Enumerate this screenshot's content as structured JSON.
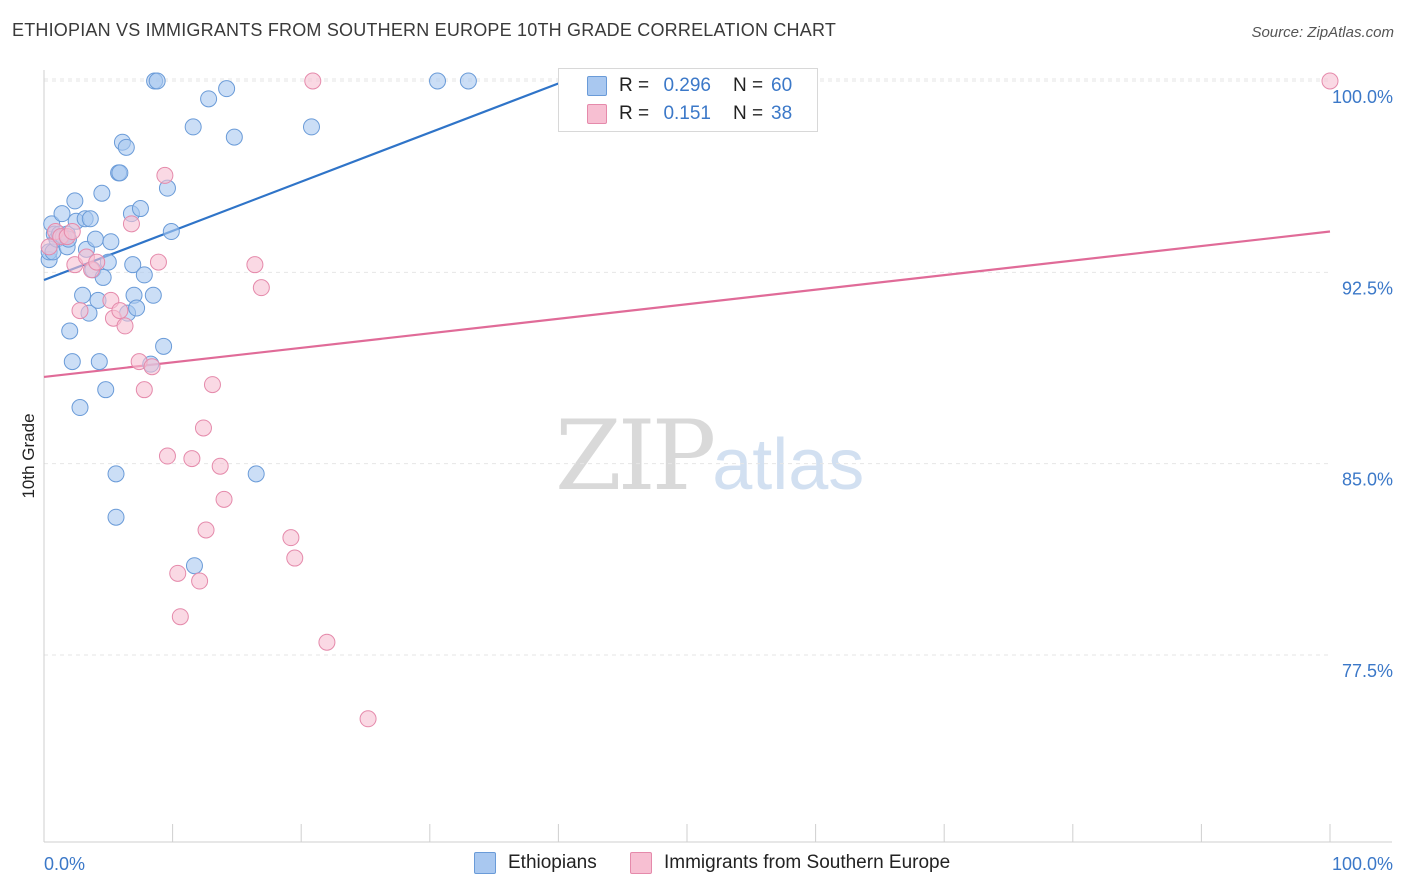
{
  "header": {
    "title": "ETHIOPIAN VS IMMIGRANTS FROM SOUTHERN EUROPE 10TH GRADE CORRELATION CHART",
    "source": "Source: ZipAtlas.com"
  },
  "watermark": {
    "zip": "ZIP",
    "atlas": "atlas"
  },
  "legend": {
    "rows": [
      {
        "r_label": "R =",
        "r_value": "0.296",
        "n_label": "N =",
        "n_value": "60",
        "color": "#a9c8f0",
        "border": "#6a9bd8"
      },
      {
        "r_label": "R =",
        "r_value": "0.151",
        "n_label": "N =",
        "n_value": "38",
        "color": "#f7bfd2",
        "border": "#e58aab"
      }
    ]
  },
  "bottom_legend": {
    "items": [
      {
        "label": "Ethiopians",
        "color": "#a9c8f0",
        "border": "#6a9bd8"
      },
      {
        "label": "Immigrants from Southern Europe",
        "color": "#f7bfd2",
        "border": "#e58aab"
      }
    ]
  },
  "colors": {
    "blue_fill": "#a9c8f0",
    "blue_stroke": "#6a9bd8",
    "blue_line": "#2f74c8",
    "pink_fill": "#f7bfd2",
    "pink_stroke": "#e58aab",
    "pink_line": "#e06b98",
    "grid": "#e6e6e6",
    "axis_text": "#3b78c8"
  },
  "chart_data": {
    "type": "scatter",
    "title": "ETHIOPIAN VS IMMIGRANTS FROM SOUTHERN EUROPE 10TH GRADE CORRELATION CHART",
    "xlabel": "",
    "ylabel": "10th Grade",
    "xlim": [
      0,
      100
    ],
    "ylim": [
      70.0,
      100.8
    ],
    "x_tick_labels": [
      "0.0%",
      "100.0%"
    ],
    "y_ticks": [
      100.0,
      92.5,
      85.0,
      77.5
    ],
    "y_tick_labels": [
      "100.0%",
      "92.5%",
      "85.0%",
      "77.5%"
    ],
    "grid": true,
    "series": [
      {
        "name": "Ethiopians",
        "color": "#a9c8f0",
        "trend": {
          "x": [
            0,
            40.5
          ],
          "y": [
            92.2,
            100.0
          ]
        },
        "points": [
          [
            0.4,
            93.0
          ],
          [
            0.4,
            93.3
          ],
          [
            0.6,
            94.4
          ],
          [
            0.7,
            93.3
          ],
          [
            0.8,
            94.0
          ],
          [
            1.0,
            93.8
          ],
          [
            1.2,
            94.0
          ],
          [
            1.4,
            94.8
          ],
          [
            1.5,
            93.9
          ],
          [
            1.8,
            94.0
          ],
          [
            1.8,
            93.5
          ],
          [
            1.9,
            93.8
          ],
          [
            2.0,
            90.2
          ],
          [
            2.2,
            89.0
          ],
          [
            2.4,
            95.3
          ],
          [
            2.5,
            94.5
          ],
          [
            2.8,
            87.2
          ],
          [
            3.0,
            91.6
          ],
          [
            3.2,
            94.6
          ],
          [
            3.3,
            93.4
          ],
          [
            3.5,
            90.9
          ],
          [
            3.6,
            94.6
          ],
          [
            3.8,
            92.6
          ],
          [
            4.0,
            93.8
          ],
          [
            4.2,
            91.4
          ],
          [
            4.3,
            89.0
          ],
          [
            4.5,
            95.6
          ],
          [
            4.6,
            92.3
          ],
          [
            4.8,
            87.9
          ],
          [
            5.0,
            92.9
          ],
          [
            5.2,
            93.7
          ],
          [
            5.6,
            82.9
          ],
          [
            5.6,
            84.6
          ],
          [
            5.8,
            96.4
          ],
          [
            5.9,
            96.4
          ],
          [
            6.1,
            97.6
          ],
          [
            6.4,
            97.4
          ],
          [
            6.5,
            90.9
          ],
          [
            6.8,
            94.8
          ],
          [
            6.9,
            92.8
          ],
          [
            7.0,
            91.6
          ],
          [
            7.2,
            91.1
          ],
          [
            7.5,
            95.0
          ],
          [
            7.8,
            92.4
          ],
          [
            8.3,
            88.9
          ],
          [
            8.5,
            91.6
          ],
          [
            8.6,
            100.0
          ],
          [
            8.8,
            100.0
          ],
          [
            9.3,
            89.6
          ],
          [
            9.6,
            95.8
          ],
          [
            9.9,
            94.1
          ],
          [
            11.7,
            81.0
          ],
          [
            11.6,
            98.2
          ],
          [
            12.8,
            99.3
          ],
          [
            14.2,
            99.7
          ],
          [
            14.8,
            97.8
          ],
          [
            16.5,
            84.6
          ],
          [
            20.8,
            98.2
          ],
          [
            30.6,
            100.0
          ],
          [
            33.0,
            100.0
          ]
        ]
      },
      {
        "name": "Immigrants from Southern Europe",
        "color": "#f7bfd2",
        "trend": {
          "x": [
            0,
            100
          ],
          "y": [
            88.4,
            94.1
          ]
        },
        "points": [
          [
            0.4,
            93.5
          ],
          [
            0.9,
            94.1
          ],
          [
            1.3,
            93.9
          ],
          [
            1.8,
            93.9
          ],
          [
            2.2,
            94.1
          ],
          [
            2.4,
            92.8
          ],
          [
            2.8,
            91.0
          ],
          [
            3.3,
            93.1
          ],
          [
            3.7,
            92.6
          ],
          [
            4.1,
            92.9
          ],
          [
            5.2,
            91.4
          ],
          [
            5.4,
            90.7
          ],
          [
            5.9,
            91.0
          ],
          [
            6.3,
            90.4
          ],
          [
            6.8,
            94.4
          ],
          [
            7.4,
            89.0
          ],
          [
            7.8,
            87.9
          ],
          [
            8.4,
            88.8
          ],
          [
            8.9,
            92.9
          ],
          [
            9.4,
            96.3
          ],
          [
            9.6,
            85.3
          ],
          [
            10.4,
            80.7
          ],
          [
            10.6,
            79.0
          ],
          [
            11.5,
            85.2
          ],
          [
            12.1,
            80.4
          ],
          [
            12.4,
            86.4
          ],
          [
            12.6,
            82.4
          ],
          [
            13.1,
            88.1
          ],
          [
            13.7,
            84.9
          ],
          [
            14.0,
            83.6
          ],
          [
            16.4,
            92.8
          ],
          [
            16.9,
            91.9
          ],
          [
            19.2,
            82.1
          ],
          [
            19.5,
            81.3
          ],
          [
            20.9,
            100.0
          ],
          [
            22.0,
            78.0
          ],
          [
            25.2,
            75.0
          ],
          [
            100.0,
            100.0
          ]
        ]
      }
    ]
  }
}
